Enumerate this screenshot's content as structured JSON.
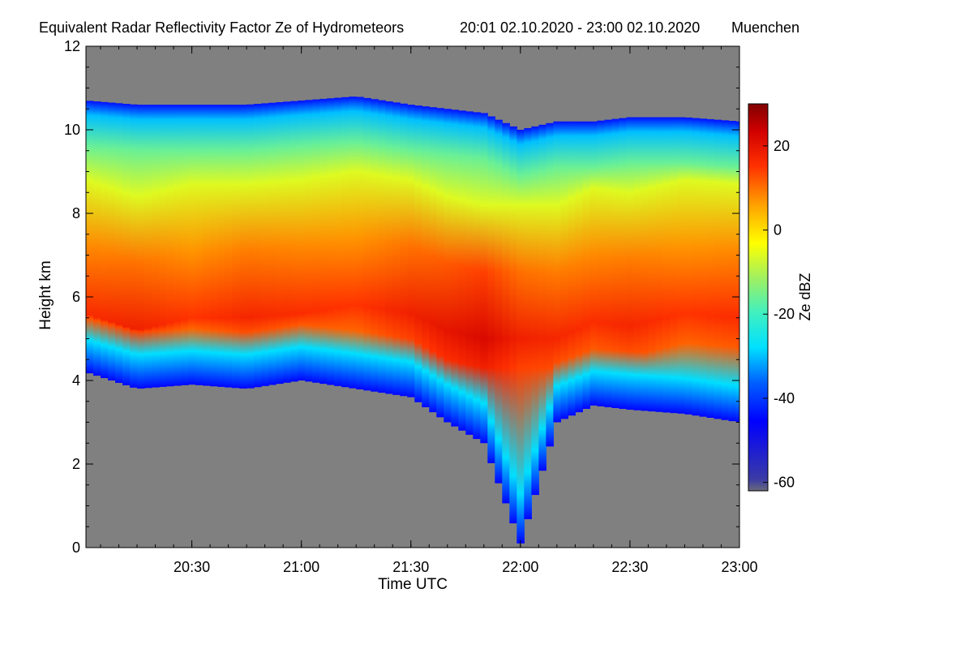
{
  "chart_data": {
    "type": "heatmap",
    "title": "Equivalent Radar Reflectivity Factor Ze of Hydrometeors",
    "period": "20:01 02.10.2020 - 23:00 02.10.2020",
    "location": "Muenchen",
    "xlabel": "Time UTC",
    "ylabel": "Height km",
    "x_ticks": [
      "20:30",
      "21:00",
      "21:30",
      "22:00",
      "22:30",
      "23:00"
    ],
    "x_range": [
      "20:01",
      "23:00"
    ],
    "y_ticks": [
      0,
      2,
      4,
      6,
      8,
      10,
      12
    ],
    "ylim": [
      0,
      12
    ],
    "colorbar": {
      "label": "Ze dBZ",
      "ticks": [
        20,
        0,
        -20,
        -40,
        -60
      ],
      "range": [
        -62,
        30
      ]
    },
    "background_color": "#808080",
    "cloud": {
      "times": [
        "20:01",
        "20:15",
        "20:30",
        "20:45",
        "21:00",
        "21:15",
        "21:30",
        "21:40",
        "21:50",
        "22:00",
        "22:10",
        "22:20",
        "22:30",
        "22:45",
        "23:00"
      ],
      "top_km": [
        10.7,
        10.6,
        10.6,
        10.6,
        10.7,
        10.8,
        10.6,
        10.5,
        10.4,
        10.0,
        10.2,
        10.2,
        10.3,
        10.3,
        10.2
      ],
      "base_km": [
        4.2,
        3.8,
        3.9,
        3.8,
        4.0,
        3.8,
        3.6,
        3.0,
        2.5,
        0.1,
        3.0,
        3.4,
        3.3,
        3.2,
        3.0
      ],
      "core_km": [
        5.6,
        5.2,
        5.5,
        5.5,
        5.6,
        5.8,
        5.6,
        5.2,
        5.0,
        5.0,
        5.0,
        5.4,
        5.3,
        5.6,
        5.5
      ],
      "core_dbz": [
        16,
        18,
        15,
        17,
        16,
        15,
        18,
        20,
        22,
        18,
        17,
        16,
        17,
        15,
        16
      ]
    }
  }
}
